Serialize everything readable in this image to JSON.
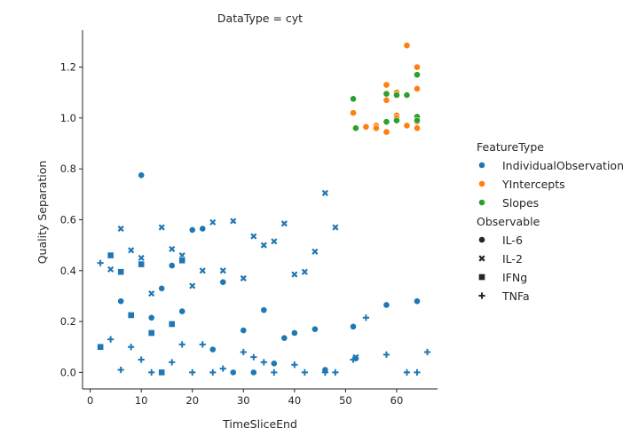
{
  "chart_data": {
    "type": "scatter",
    "title": "DataType = cyt",
    "xlabel": "TimeSliceEnd",
    "ylabel": "Quality Separation",
    "xlim": [
      -1.5,
      68
    ],
    "ylim": [
      -0.065,
      1.345
    ],
    "xticks": [
      0,
      10,
      20,
      30,
      40,
      50,
      60
    ],
    "xtick_labels": [
      "0",
      "10",
      "20",
      "30",
      "40",
      "50",
      "60"
    ],
    "yticks": [
      0.0,
      0.2,
      0.4,
      0.6,
      0.8,
      1.0,
      1.2
    ],
    "ytick_labels": [
      "0.0",
      "0.2",
      "0.4",
      "0.6",
      "0.8",
      "1.0",
      "1.2"
    ],
    "grid": false,
    "legend_position": "right",
    "hue_title": "FeatureType",
    "style_title": "Observable",
    "hues": [
      {
        "name": "IndividualObservation",
        "color": "#1f77b4"
      },
      {
        "name": "YIntercepts",
        "color": "#ff7f0e"
      },
      {
        "name": "Slopes",
        "color": "#2ca02c"
      }
    ],
    "styles": [
      {
        "name": "IL-6",
        "marker": "circle"
      },
      {
        "name": "IL-2",
        "marker": "x"
      },
      {
        "name": "IFNg",
        "marker": "square"
      },
      {
        "name": "TNFa",
        "marker": "plus"
      }
    ],
    "series": [
      {
        "name": "IndividualObservation",
        "style": "IL-6",
        "color": "#1f77b4",
        "marker": "circle",
        "points": [
          [
            6,
            0.28
          ],
          [
            10,
            0.775
          ],
          [
            12,
            0.215
          ],
          [
            14,
            0.33
          ],
          [
            16,
            0.42
          ],
          [
            18,
            0.24
          ],
          [
            20,
            0.56
          ],
          [
            22,
            0.565
          ],
          [
            24,
            0.09
          ],
          [
            26,
            0.355
          ],
          [
            28,
            0.0
          ],
          [
            30,
            0.165
          ],
          [
            32,
            0.0
          ],
          [
            34,
            0.245
          ],
          [
            36,
            0.035
          ],
          [
            38,
            0.135
          ],
          [
            40,
            0.155
          ],
          [
            44,
            0.17
          ],
          [
            46,
            0.01
          ],
          [
            51.5,
            0.18
          ],
          [
            52,
            0.055
          ],
          [
            58,
            0.265
          ],
          [
            64,
            0.28
          ]
        ]
      },
      {
        "name": "IndividualObservation",
        "style": "IL-2",
        "color": "#1f77b4",
        "marker": "x",
        "points": [
          [
            4,
            0.405
          ],
          [
            6,
            0.565
          ],
          [
            8,
            0.48
          ],
          [
            10,
            0.45
          ],
          [
            12,
            0.31
          ],
          [
            14,
            0.57
          ],
          [
            16,
            0.485
          ],
          [
            18,
            0.46
          ],
          [
            20,
            0.34
          ],
          [
            22,
            0.4
          ],
          [
            24,
            0.59
          ],
          [
            26,
            0.4
          ],
          [
            28,
            0.595
          ],
          [
            30,
            0.37
          ],
          [
            32,
            0.535
          ],
          [
            34,
            0.5
          ],
          [
            36,
            0.515
          ],
          [
            38,
            0.585
          ],
          [
            40,
            0.385
          ],
          [
            42,
            0.395
          ],
          [
            44,
            0.475
          ],
          [
            46,
            0.705
          ],
          [
            48,
            0.57
          ],
          [
            52,
            0.06
          ]
        ]
      },
      {
        "name": "IndividualObservation",
        "style": "IFNg",
        "color": "#1f77b4",
        "marker": "square",
        "points": [
          [
            2,
            0.1
          ],
          [
            4,
            0.46
          ],
          [
            6,
            0.395
          ],
          [
            8,
            0.225
          ],
          [
            10,
            0.425
          ],
          [
            12,
            0.155
          ],
          [
            14,
            0.0
          ],
          [
            16,
            0.19
          ],
          [
            18,
            0.44
          ]
        ]
      },
      {
        "name": "IndividualObservation",
        "style": "TNFa",
        "color": "#1f77b4",
        "marker": "plus",
        "points": [
          [
            2,
            0.43
          ],
          [
            4,
            0.13
          ],
          [
            6,
            0.01
          ],
          [
            8,
            0.1
          ],
          [
            10,
            0.05
          ],
          [
            12,
            0.0
          ],
          [
            16,
            0.04
          ],
          [
            18,
            0.11
          ],
          [
            20,
            0.0
          ],
          [
            22,
            0.11
          ],
          [
            24,
            0.0
          ],
          [
            26,
            0.015
          ],
          [
            30,
            0.08
          ],
          [
            32,
            0.06
          ],
          [
            34,
            0.04
          ],
          [
            36,
            0.0
          ],
          [
            40,
            0.03
          ],
          [
            42,
            0.0
          ],
          [
            46,
            0.0
          ],
          [
            48,
            0.0
          ],
          [
            51.5,
            0.05
          ],
          [
            54,
            0.215
          ],
          [
            58,
            0.07
          ],
          [
            62,
            0.0
          ],
          [
            64,
            0.0
          ],
          [
            66,
            0.08
          ]
        ]
      },
      {
        "name": "YIntercepts",
        "style": "IL-6",
        "color": "#ff7f0e",
        "marker": "circle",
        "points": [
          [
            51.5,
            1.02
          ],
          [
            54,
            0.965
          ],
          [
            56,
            0.97
          ],
          [
            56,
            0.96
          ],
          [
            58,
            0.945
          ],
          [
            58,
            1.13
          ],
          [
            58,
            1.07
          ],
          [
            60,
            1.1
          ],
          [
            60,
            1.01
          ],
          [
            60,
            1.0
          ],
          [
            62,
            1.285
          ],
          [
            62,
            0.97
          ],
          [
            64,
            1.2
          ],
          [
            64,
            1.115
          ],
          [
            64,
            0.96
          ],
          [
            64,
            0.985
          ]
        ]
      },
      {
        "name": "Slopes",
        "style": "IL-6",
        "color": "#2ca02c",
        "marker": "circle",
        "points": [
          [
            51.5,
            1.075
          ],
          [
            52,
            0.96
          ],
          [
            58,
            1.095
          ],
          [
            58,
            0.985
          ],
          [
            60,
            1.09
          ],
          [
            60,
            0.99
          ],
          [
            62,
            1.09
          ],
          [
            64,
            1.17
          ],
          [
            64,
            1.005
          ],
          [
            64,
            0.99
          ]
        ]
      }
    ]
  }
}
